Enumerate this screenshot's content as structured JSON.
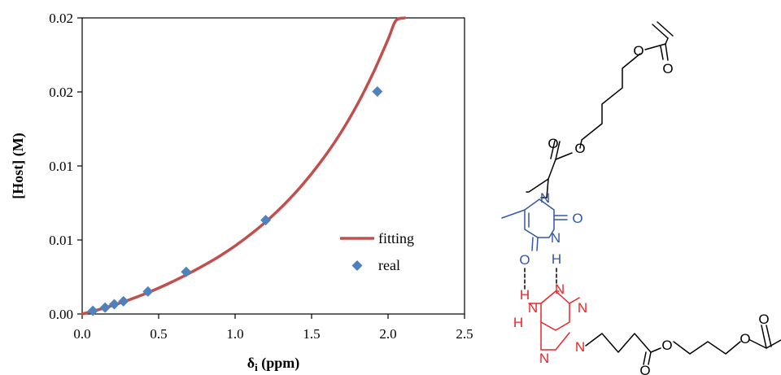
{
  "chart_data": {
    "type": "scatter",
    "xlabel_main": "δ",
    "xlabel_sub": "i",
    "xlabel_unit": " (ppm)",
    "ylabel": "[Host] (M)",
    "xlim": [
      0,
      2.5
    ],
    "ylim": [
      0,
      0.02
    ],
    "x_ticks": [
      "0.0",
      "0.5",
      "1.0",
      "1.5",
      "2.0",
      "2.5"
    ],
    "y_ticks": [
      "0.00",
      "0.01",
      "0.01",
      "0.02",
      "0.02"
    ],
    "legend_position": "center-right",
    "series": [
      {
        "name": "fitting",
        "kind": "line",
        "color": "#C0504D",
        "x": [
          0.0,
          0.1,
          0.2,
          0.3,
          0.4,
          0.5,
          0.6,
          0.7,
          0.8,
          0.9,
          1.0,
          1.1,
          1.2,
          1.3,
          1.4,
          1.5,
          1.6,
          1.7,
          1.8,
          1.9,
          2.0,
          2.05,
          2.11
        ],
        "y": [
          0.0,
          0.00027,
          0.00058,
          0.00093,
          0.00132,
          0.00175,
          0.00223,
          0.00275,
          0.00331,
          0.00392,
          0.0046,
          0.00537,
          0.00622,
          0.00718,
          0.00826,
          0.00948,
          0.01084,
          0.01239,
          0.01417,
          0.01622,
          0.01855,
          0.0198,
          0.02
        ]
      },
      {
        "name": "real",
        "kind": "scatter",
        "color": "#4F81BD",
        "x": [
          0.07,
          0.15,
          0.21,
          0.27,
          0.43,
          0.68,
          1.2,
          1.93
        ],
        "y": [
          0.00021,
          0.00043,
          0.00066,
          0.00086,
          0.00152,
          0.00284,
          0.00634,
          0.01503
        ]
      }
    ]
  },
  "molecule": {
    "colors": {
      "thymine": "#3355AA",
      "adenine": "#E8262A",
      "linker": "#000000"
    },
    "atoms": {
      "thy_n1": "N",
      "thy_n3": "N",
      "thy_o2": "O",
      "thy_o4": "O",
      "thy_h3": "H",
      "ade_n1": "N",
      "ade_n3": "N",
      "ade_n7": "N",
      "ade_n9": "N",
      "ade_nh": "N",
      "ade_h1": "H",
      "ade_h2": "H",
      "ester1_o_carbonyl": "O",
      "ester1_o_ether": "O",
      "acrylate1_o_ether": "O",
      "acrylate1_o_carbonyl": "O",
      "ester2_o_carbonyl": "O",
      "ester2_o_ether": "O",
      "acrylate2_o_ether": "O",
      "acrylate2_o_carbonyl": "O"
    }
  }
}
